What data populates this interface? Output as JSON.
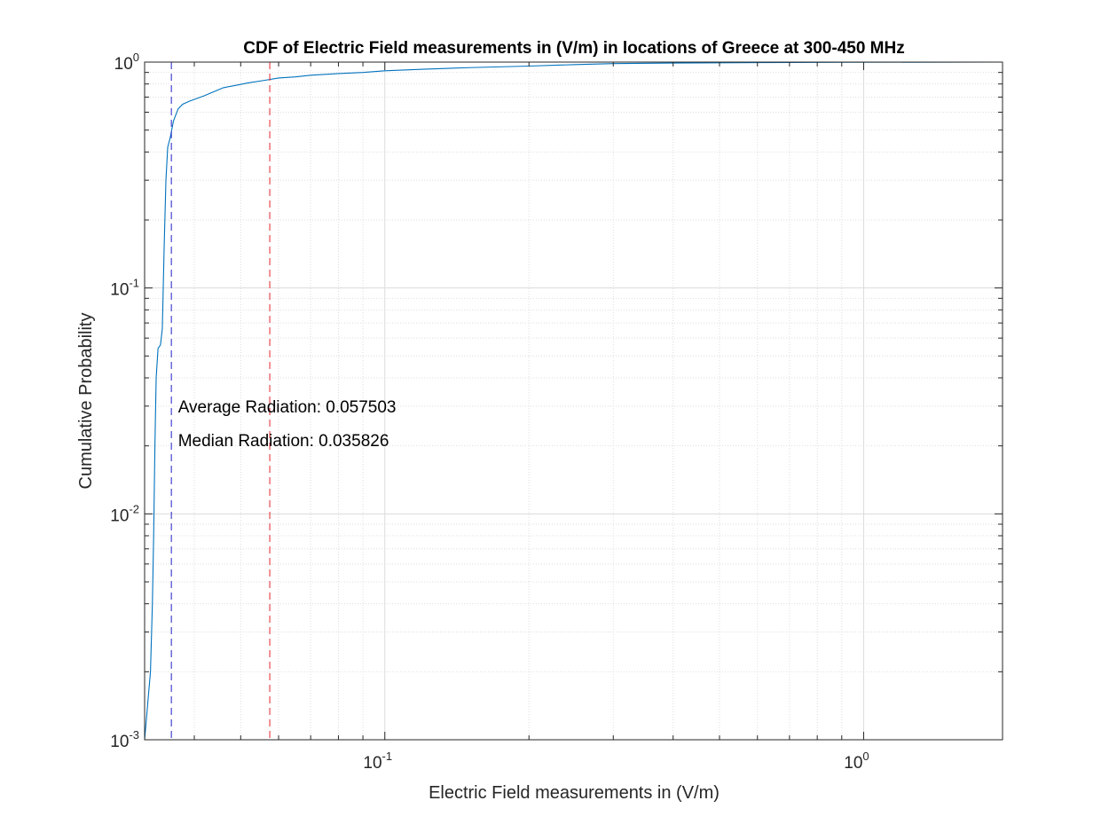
{
  "chart_data": {
    "type": "line",
    "title": "CDF of Electric Field measurements in (V/m) in locations of Greece at 300-450 MHz",
    "xlabel": "Electric Field measurements in (V/m)",
    "ylabel": "Cumulative Probability",
    "xscale": "log",
    "yscale": "log",
    "xlim": [
      0.0315,
      1.95
    ],
    "ylim": [
      0.001,
      1
    ],
    "grid": true,
    "minor_grid": true,
    "x_ticks": [
      {
        "value": 0.1,
        "base": "10",
        "exp": "-1"
      },
      {
        "value": 1,
        "base": "10",
        "exp": "0"
      }
    ],
    "y_ticks": [
      {
        "value": 0.001,
        "base": "10",
        "exp": "-3"
      },
      {
        "value": 0.01,
        "base": "10",
        "exp": "-2"
      },
      {
        "value": 0.1,
        "base": "10",
        "exp": "-1"
      },
      {
        "value": 1,
        "base": "10",
        "exp": "0"
      }
    ],
    "series": [
      {
        "color": "#0072BD",
        "points": [
          [
            0.0315,
            0.001
          ],
          [
            0.0324,
            0.002
          ],
          [
            0.0327,
            0.004
          ],
          [
            0.0329,
            0.008
          ],
          [
            0.0331,
            0.02
          ],
          [
            0.0333,
            0.04
          ],
          [
            0.0336,
            0.054
          ],
          [
            0.034,
            0.056
          ],
          [
            0.0343,
            0.066
          ],
          [
            0.0346,
            0.15
          ],
          [
            0.0349,
            0.3
          ],
          [
            0.0352,
            0.42
          ],
          [
            0.0356,
            0.46
          ],
          [
            0.0362,
            0.55
          ],
          [
            0.037,
            0.62
          ],
          [
            0.0378,
            0.65
          ],
          [
            0.039,
            0.67
          ],
          [
            0.0405,
            0.69
          ],
          [
            0.042,
            0.71
          ],
          [
            0.044,
            0.74
          ],
          [
            0.046,
            0.77
          ],
          [
            0.049,
            0.79
          ],
          [
            0.052,
            0.81
          ],
          [
            0.056,
            0.83
          ],
          [
            0.06,
            0.85
          ],
          [
            0.065,
            0.86
          ],
          [
            0.07,
            0.875
          ],
          [
            0.08,
            0.89
          ],
          [
            0.09,
            0.9
          ],
          [
            0.1,
            0.915
          ],
          [
            0.12,
            0.93
          ],
          [
            0.15,
            0.945
          ],
          [
            0.2,
            0.96
          ],
          [
            0.25,
            0.975
          ],
          [
            0.3,
            0.985
          ],
          [
            0.4,
            0.99
          ],
          [
            0.6,
            0.995
          ],
          [
            0.9,
            0.998
          ],
          [
            1.95,
            1.0
          ]
        ]
      }
    ],
    "reference_lines": [
      {
        "x": 0.035826,
        "color": "#3333CC",
        "style": "dashed"
      },
      {
        "x": 0.057503,
        "color": "#E8373F",
        "style": "dashed"
      }
    ],
    "annotations": [
      {
        "text": "Average Radiation: 0.057503",
        "x": 0.037,
        "y": 0.03
      },
      {
        "text": "Median Radiation: 0.035826",
        "x": 0.037,
        "y": 0.0212
      }
    ]
  }
}
